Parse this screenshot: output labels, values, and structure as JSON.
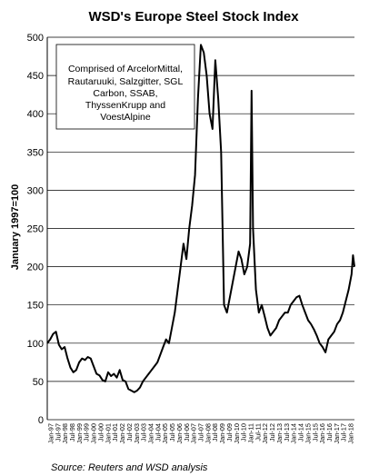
{
  "chart_data": {
    "type": "line",
    "title": "WSD's Europe Steel Stock Index",
    "ylabel": "January 1997=100",
    "xlabel": "",
    "ylim": [
      0,
      500
    ],
    "yticks": [
      0,
      50,
      100,
      150,
      200,
      250,
      300,
      350,
      400,
      450,
      500
    ],
    "grid": "horizontal",
    "annotation": "Comprised  of ArcelorMittal, Rautaruuki,  Salzgitter,  SGL Carbon,  SSAB, ThyssenKrupp and VoestAlpine",
    "annotation_lines": [
      "Comprised  of ArcelorMittal,",
      "Rautaruuki,  Salzgitter,  SGL",
      "Carbon,  SSAB,",
      "ThyssenKrupp and",
      "VoestAlpine"
    ],
    "source": "Source: Reuters and WSD analysis",
    "xtick_labels": [
      "Jan-97",
      "Jul-97",
      "Jan-98",
      "Jul-98",
      "Jan-99",
      "Jul-99",
      "Jan-00",
      "Jul-00",
      "Jan-01",
      "Jul-01",
      "Jan-02",
      "Jul-02",
      "Jan-03",
      "Jul-03",
      "Jan-04",
      "Jul-04",
      "Jan-05",
      "Jul-05",
      "Jan-06",
      "Jul-06",
      "Jan-07",
      "Jul-07",
      "Jan-08",
      "Jul-08",
      "Jan-09",
      "Jul-09",
      "Jan-10",
      "Jul-10",
      "Jan-11",
      "Jul-11",
      "Jan-12",
      "Jul-12",
      "Jan-13",
      "Jul-13",
      "Jan-14",
      "Jul-14",
      "Jan-15",
      "Jul-15",
      "Jan-16",
      "Jul-16",
      "Jan-17",
      "Jul-17",
      "Jan-18"
    ],
    "series": [
      {
        "color": "#000000",
        "x": [
          1997.0,
          1997.2,
          1997.4,
          1997.6,
          1997.8,
          1998.0,
          1998.2,
          1998.4,
          1998.6,
          1998.8,
          1999.0,
          1999.2,
          1999.4,
          1999.6,
          1999.8,
          2000.0,
          2000.2,
          2000.4,
          2000.6,
          2000.8,
          2001.0,
          2001.2,
          2001.4,
          2001.6,
          2001.8,
          2002.0,
          2002.2,
          2002.4,
          2002.6,
          2002.8,
          2003.0,
          2003.2,
          2003.4,
          2003.6,
          2003.8,
          2004.0,
          2004.2,
          2004.4,
          2004.6,
          2004.8,
          2005.0,
          2005.2,
          2005.4,
          2005.6,
          2005.8,
          2006.0,
          2006.2,
          2006.4,
          2006.6,
          2006.8,
          2007.0,
          2007.2,
          2007.4,
          2007.6,
          2007.8,
          2008.0,
          2008.2,
          2008.4,
          2008.6,
          2008.8,
          2009.0,
          2009.2,
          2009.4,
          2009.6,
          2009.8,
          2010.0,
          2010.2,
          2010.4,
          2010.6,
          2010.8,
          2011.0,
          2011.1,
          2011.2,
          2011.4,
          2011.6,
          2011.8,
          2012.0,
          2012.2,
          2012.4,
          2012.6,
          2012.8,
          2013.0,
          2013.2,
          2013.4,
          2013.6,
          2013.8,
          2014.0,
          2014.2,
          2014.4,
          2014.6,
          2014.8,
          2015.0,
          2015.2,
          2015.4,
          2015.6,
          2015.8,
          2016.0,
          2016.2,
          2016.4,
          2016.6,
          2016.8,
          2017.0,
          2017.2,
          2017.4,
          2017.6,
          2017.8,
          2018.0,
          2018.1,
          2018.2
        ],
        "values": [
          100,
          105,
          112,
          115,
          98,
          92,
          95,
          80,
          68,
          62,
          65,
          75,
          80,
          78,
          82,
          80,
          70,
          60,
          58,
          52,
          50,
          62,
          57,
          60,
          55,
          65,
          52,
          50,
          40,
          38,
          36,
          38,
          42,
          50,
          55,
          60,
          65,
          70,
          75,
          85,
          95,
          105,
          100,
          120,
          140,
          170,
          200,
          230,
          210,
          250,
          280,
          320,
          420,
          490,
          480,
          450,
          400,
          380,
          470,
          420,
          350,
          150,
          140,
          160,
          180,
          200,
          220,
          210,
          190,
          200,
          230,
          430,
          250,
          170,
          140,
          150,
          135,
          120,
          110,
          115,
          120,
          130,
          135,
          140,
          140,
          150,
          155,
          160,
          162,
          150,
          140,
          130,
          125,
          118,
          110,
          100,
          95,
          88,
          105,
          110,
          115,
          125,
          130,
          140,
          155,
          170,
          190,
          215,
          200
        ]
      }
    ]
  }
}
